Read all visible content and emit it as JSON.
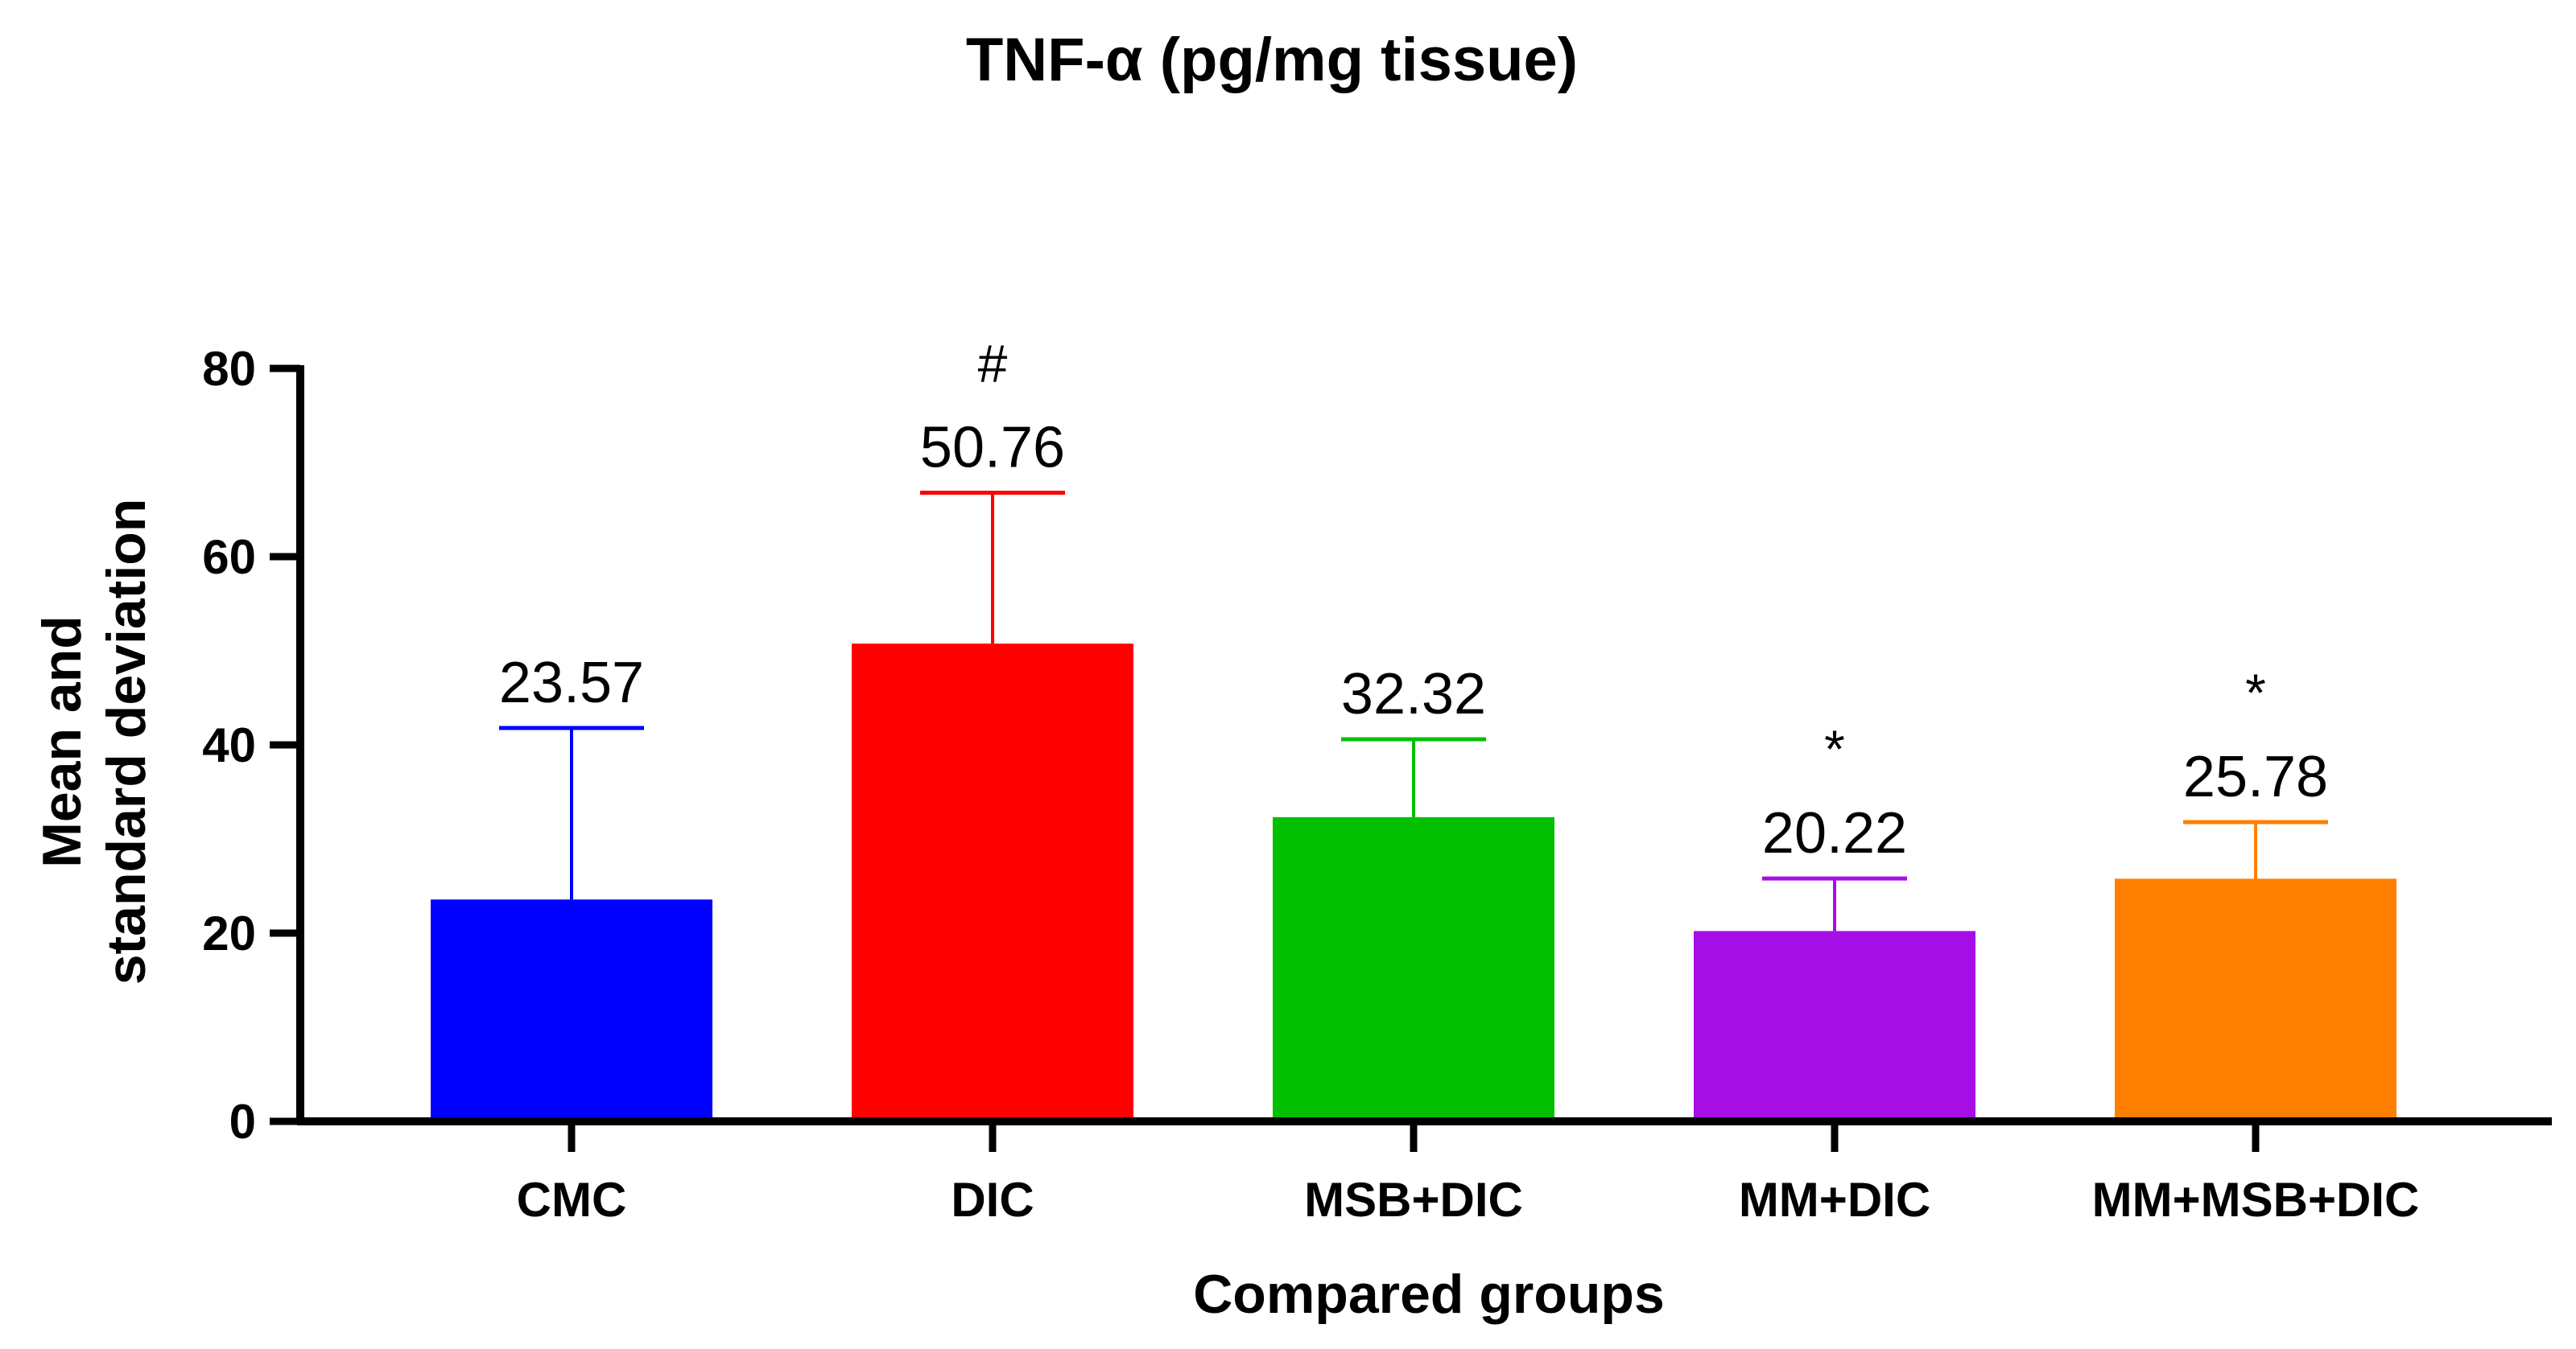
{
  "chart_data": {
    "type": "bar",
    "title": "TNF-α (pg/mg tissue)",
    "xlabel": "Compared groups",
    "ylabel_lines": [
      "Mean and",
      "standard deviation"
    ],
    "ylim": [
      0,
      80
    ],
    "yticks": [
      0,
      20,
      40,
      60,
      80
    ],
    "grid": false,
    "categories": [
      "CMC",
      "DIC",
      "MSB+DIC",
      "MM+DIC",
      "MM+MSB+DIC"
    ],
    "values": [
      23.57,
      50.76,
      32.32,
      20.22,
      25.78
    ],
    "error_upper": [
      41.8,
      66.8,
      40.6,
      25.8,
      31.8
    ],
    "value_labels": [
      "23.57",
      "50.76",
      "32.32",
      "20.22",
      "25.78"
    ],
    "significance": [
      "",
      "#",
      "",
      "*",
      "*"
    ],
    "colors": [
      "#0000ff",
      "#ff0000",
      "#00c000",
      "#a60ee6",
      "#ff8000"
    ]
  }
}
